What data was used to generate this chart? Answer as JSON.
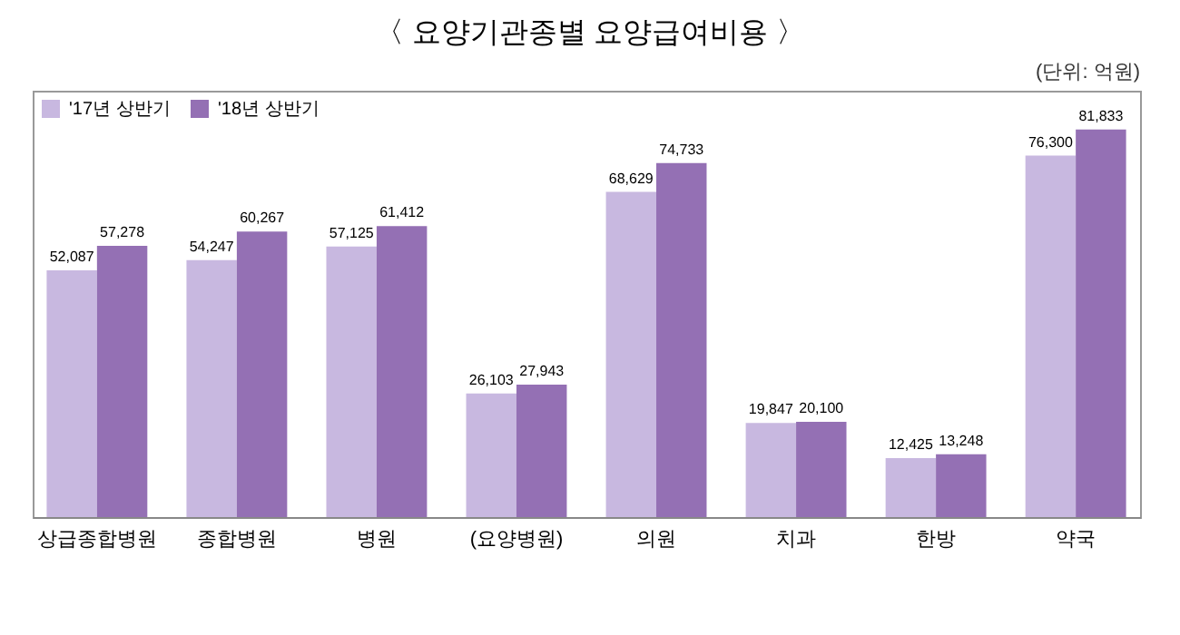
{
  "chart_data": {
    "type": "bar",
    "title": "〈 요양기관종별 요양급여비용 〉",
    "annotations": [
      "(단위: 억원)"
    ],
    "categories": [
      "상급종합병원",
      "종합병원",
      "병원",
      "(요양병원)",
      "의원",
      "치과",
      "한방",
      "약국"
    ],
    "series": [
      {
        "name": "'17년 상반기",
        "color": "#c8b8e0",
        "values": [
          52087,
          54247,
          57125,
          26103,
          68629,
          19847,
          12425,
          76300
        ],
        "value_labels": [
          "52,087",
          "54,247",
          "57,125",
          "26,103",
          "68,629",
          "19,847",
          "12,425",
          "76,300"
        ]
      },
      {
        "name": "'18년 상반기",
        "color": "#9470b4",
        "values": [
          57278,
          60267,
          61412,
          27943,
          74733,
          20100,
          13248,
          81833
        ],
        "value_labels": [
          "57,278",
          "60,267",
          "61,412",
          "27,943",
          "74,733",
          "20,100",
          "13,248",
          "81,833"
        ]
      }
    ],
    "legend": "top left",
    "grid": false
  }
}
